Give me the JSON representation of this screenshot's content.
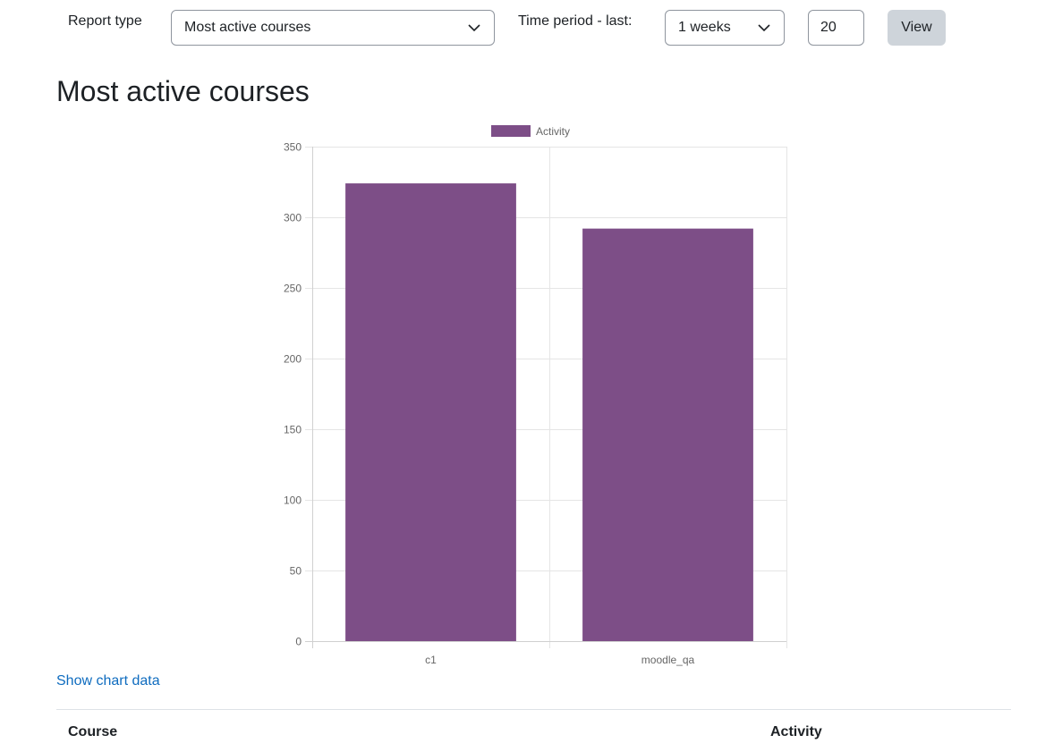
{
  "filters": {
    "report_type_label": "Report type",
    "report_type_value": "Most active courses",
    "time_period_label": "Time period - last:",
    "time_period_value": "1 weeks",
    "count_value": "20",
    "view_label": "View"
  },
  "page_title": "Most active courses",
  "chart_data": {
    "type": "bar",
    "categories": [
      "c1",
      "moodle_qa"
    ],
    "series": [
      {
        "name": "Activity",
        "values": [
          324,
          292
        ],
        "color": "#7d4e87"
      }
    ],
    "ylim": [
      0,
      350
    ],
    "yticks": [
      0,
      50,
      100,
      150,
      200,
      250,
      300,
      350
    ],
    "grid": true,
    "legend": "top"
  },
  "show_chart_data_label": "Show chart data",
  "table": {
    "columns": [
      "Course",
      "Activity"
    ]
  }
}
